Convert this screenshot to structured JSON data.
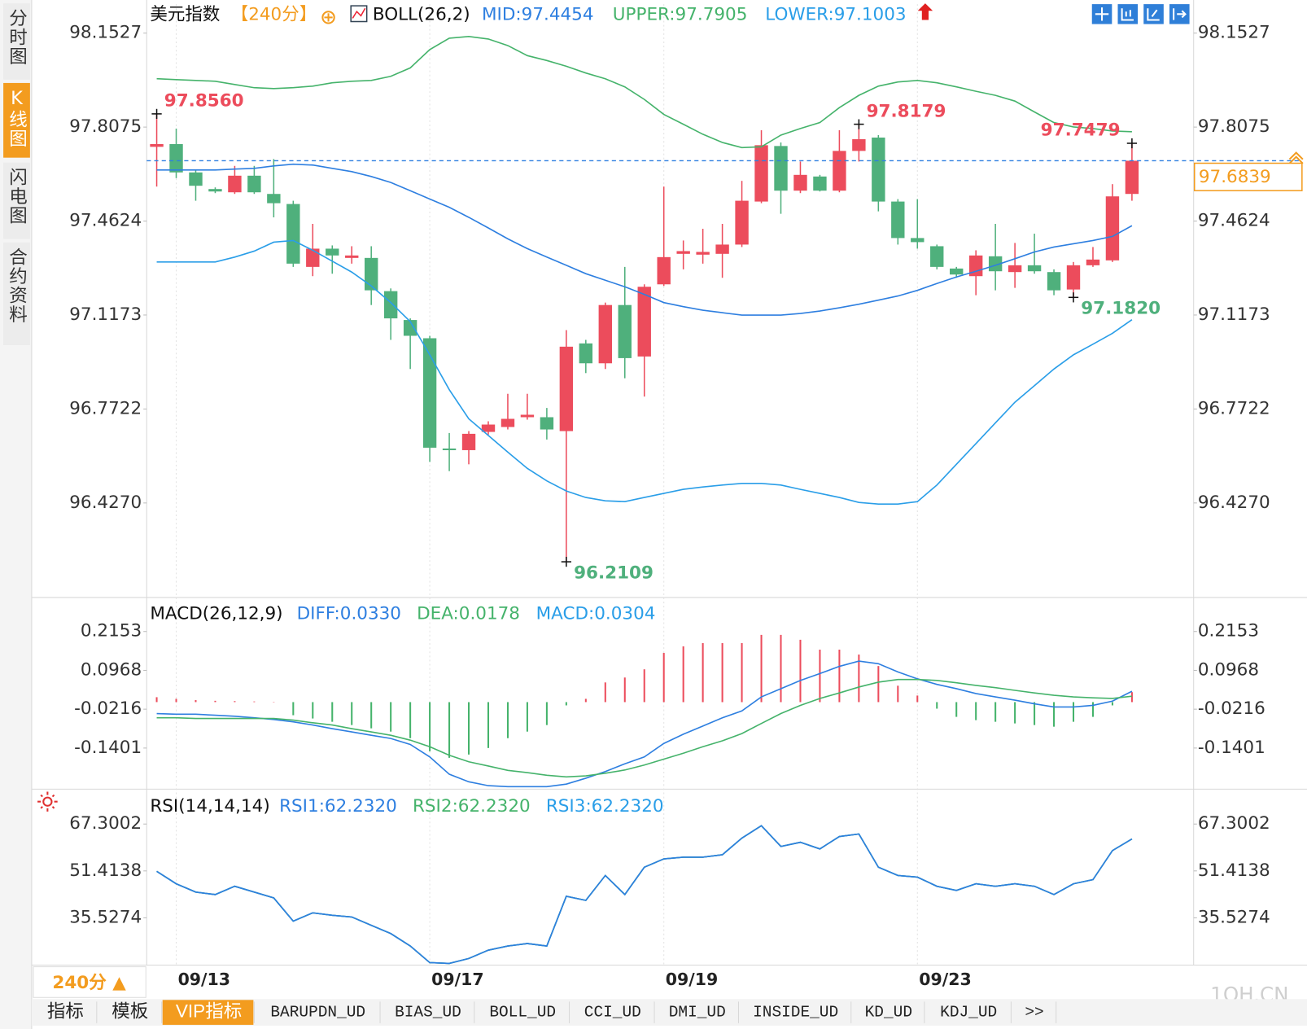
{
  "sidebar": {
    "tabs": [
      "分时图",
      "K线图",
      "闪电图",
      "合约资料"
    ],
    "active": 1
  },
  "toolbar": {
    "period": "240分 ▲",
    "tabs": [
      "指标",
      "模板",
      "VIP指标",
      "BARUPDN_UD",
      "BIAS_UD",
      "BOLL_UD",
      "CCI_UD",
      "DMI_UD",
      "INSIDE_UD",
      "KD_UD",
      "KDJ_UD",
      ">>"
    ],
    "active": 2
  },
  "watermark": "1QH.CN",
  "chart_data": [
    {
      "type": "candlestick",
      "title": "美元指数",
      "period": "【240分】",
      "indicator": "BOLL(26,2)",
      "up_color": "#ec4c5c",
      "down_color": "#4fb07c",
      "categories": [
        null,
        "09/13",
        null,
        null,
        null,
        null,
        null,
        null,
        null,
        null,
        null,
        null,
        null,
        null,
        "09/17",
        null,
        null,
        null,
        null,
        null,
        null,
        null,
        null,
        null,
        null,
        null,
        "09/19",
        null,
        null,
        null,
        null,
        null,
        null,
        null,
        null,
        null,
        null,
        null,
        null,
        "09/23",
        null,
        null,
        null,
        null,
        null,
        null,
        null,
        null,
        null,
        null,
        null
      ],
      "open": [
        97.735,
        97.745,
        97.641,
        97.58,
        97.568,
        97.629,
        97.562,
        97.525,
        97.294,
        97.361,
        97.327,
        97.327,
        97.205,
        97.099,
        97.032,
        96.627,
        96.621,
        96.688,
        96.706,
        96.742,
        96.742,
        96.691,
        97.013,
        96.94,
        97.154,
        96.965,
        97.23,
        97.342,
        97.339,
        97.342,
        97.376,
        97.534,
        97.738,
        97.574,
        97.626,
        97.574,
        97.72,
        97.769,
        97.534,
        97.4,
        97.37,
        97.288,
        97.26,
        97.333,
        97.275,
        97.3,
        97.275,
        97.211,
        97.3,
        97.318,
        97.562
      ],
      "high": [
        97.856,
        97.802,
        97.65,
        97.586,
        97.665,
        97.665,
        97.69,
        97.537,
        97.452,
        97.373,
        97.37,
        97.37,
        97.215,
        97.105,
        97.041,
        96.684,
        96.691,
        96.727,
        96.828,
        96.828,
        96.776,
        97.062,
        97.026,
        97.163,
        97.294,
        97.23,
        97.589,
        97.391,
        97.434,
        97.452,
        97.61,
        97.796,
        97.751,
        97.681,
        97.632,
        97.796,
        97.818,
        97.778,
        97.543,
        97.543,
        97.376,
        97.294,
        97.355,
        97.452,
        97.382,
        97.416,
        97.285,
        97.312,
        97.367,
        97.598,
        97.748
      ],
      "low": [
        97.589,
        97.62,
        97.537,
        97.565,
        97.562,
        97.562,
        97.476,
        97.294,
        97.26,
        97.269,
        97.306,
        97.154,
        97.026,
        96.919,
        96.578,
        96.544,
        96.569,
        96.678,
        96.697,
        96.733,
        96.66,
        96.211,
        96.904,
        96.919,
        96.885,
        96.818,
        97.224,
        97.285,
        97.306,
        97.254,
        97.367,
        97.528,
        97.489,
        97.565,
        97.571,
        97.568,
        97.681,
        97.498,
        97.376,
        97.361,
        97.285,
        97.254,
        97.19,
        97.208,
        97.217,
        97.269,
        97.19,
        97.182,
        97.294,
        97.312,
        97.537
      ],
      "close": [
        97.745,
        97.641,
        97.592,
        97.571,
        97.629,
        97.568,
        97.528,
        97.306,
        97.361,
        97.336,
        97.336,
        97.208,
        97.105,
        97.041,
        96.63,
        96.621,
        96.681,
        96.715,
        96.736,
        96.751,
        96.697,
        97.001,
        96.94,
        97.154,
        96.959,
        97.221,
        97.33,
        97.352,
        97.349,
        97.376,
        97.537,
        97.741,
        97.574,
        97.632,
        97.574,
        97.72,
        97.763,
        97.534,
        97.4,
        97.385,
        97.294,
        97.266,
        97.336,
        97.278,
        97.3,
        97.278,
        97.208,
        97.3,
        97.321,
        97.553,
        97.6839
      ],
      "series": [
        {
          "name": "MID:97.4454",
          "color": "#2e7fe0",
          "values": [
            97.65,
            97.65,
            97.65,
            97.65,
            97.653,
            97.656,
            97.665,
            97.671,
            97.668,
            97.656,
            97.644,
            97.626,
            97.604,
            97.574,
            97.543,
            97.513,
            97.476,
            97.437,
            97.397,
            97.361,
            97.33,
            97.3,
            97.269,
            97.245,
            97.221,
            97.193,
            97.163,
            97.148,
            97.135,
            97.126,
            97.117,
            97.117,
            97.117,
            97.123,
            97.132,
            97.144,
            97.157,
            97.172,
            97.187,
            97.208,
            97.233,
            97.257,
            97.278,
            97.3,
            97.324,
            97.349,
            97.367,
            97.379,
            97.391,
            97.406,
            97.4454
          ]
        },
        {
          "name": "UPPER:97.7905",
          "color": "#45b36b",
          "values": [
            97.985,
            97.982,
            97.979,
            97.976,
            97.964,
            97.952,
            97.949,
            97.952,
            97.958,
            97.97,
            97.976,
            97.979,
            97.994,
            98.025,
            98.092,
            98.134,
            98.14,
            98.131,
            98.107,
            98.07,
            98.052,
            98.031,
            98.006,
            97.985,
            97.955,
            97.909,
            97.854,
            97.818,
            97.781,
            97.751,
            97.732,
            97.735,
            97.778,
            97.802,
            97.824,
            97.879,
            97.924,
            97.958,
            97.973,
            97.979,
            97.97,
            97.955,
            97.939,
            97.924,
            97.903,
            97.863,
            97.824,
            97.808,
            97.802,
            97.793,
            97.7905
          ]
        },
        {
          "name": "LOWER:97.1003",
          "color": "#2a9ee8",
          "values": [
            97.312,
            97.312,
            97.312,
            97.312,
            97.33,
            97.352,
            97.385,
            97.391,
            97.355,
            97.315,
            97.275,
            97.224,
            97.163,
            97.093,
            96.971,
            96.843,
            96.736,
            96.675,
            96.614,
            96.554,
            96.508,
            96.471,
            96.447,
            96.435,
            96.432,
            96.447,
            96.462,
            96.477,
            96.486,
            96.493,
            96.499,
            96.499,
            96.493,
            96.477,
            96.462,
            96.447,
            96.429,
            96.423,
            96.423,
            96.432,
            96.493,
            96.569,
            96.645,
            96.721,
            96.797,
            96.858,
            96.919,
            96.971,
            97.01,
            97.05,
            97.1003
          ]
        }
      ],
      "annotations": [
        {
          "label": "97.8560",
          "index": 0,
          "at": "high"
        },
        {
          "label": "96.2109",
          "index": 21,
          "at": "low"
        },
        {
          "label": "97.8179",
          "index": 36,
          "at": "high"
        },
        {
          "label": "97.1820",
          "index": 47,
          "at": "low"
        },
        {
          "label": "97.7479",
          "index": 50,
          "at": "high"
        }
      ],
      "last": {
        "value": 97.6839,
        "label": "97.6839"
      },
      "ylim": [
        96.086,
        98.259
      ],
      "yticks": [
        98.1527,
        97.8075,
        97.4624,
        97.1173,
        96.7722,
        {
          "value": 96.427,
          "label": "96.4270"
        }
      ]
    },
    {
      "type": "macd",
      "title": "MACD(26,12,9)",
      "up_color": "#ec4c5c",
      "down_color": "#45b36b",
      "series": [
        {
          "name": "DIFF:0.0330",
          "kind": "line",
          "color": "#2e7fe0",
          "values": [
            -0.035,
            -0.037,
            -0.037,
            -0.04,
            -0.043,
            -0.048,
            -0.053,
            -0.06,
            -0.07,
            -0.081,
            -0.091,
            -0.101,
            -0.111,
            -0.129,
            -0.167,
            -0.22,
            -0.243,
            -0.255,
            -0.258,
            -0.258,
            -0.258,
            -0.25,
            -0.232,
            -0.212,
            -0.188,
            -0.167,
            -0.126,
            -0.098,
            -0.073,
            -0.048,
            -0.027,
            0.016,
            0.041,
            0.066,
            0.087,
            0.109,
            0.125,
            0.117,
            0.092,
            0.071,
            0.054,
            0.041,
            0.026,
            0.016,
            0.006,
            -0.005,
            -0.015,
            -0.015,
            -0.01,
            0.003,
            0.033
          ]
        },
        {
          "name": "DEA:0.0178",
          "kind": "line",
          "color": "#45b36b",
          "values": [
            -0.048,
            -0.048,
            -0.05,
            -0.05,
            -0.05,
            -0.05,
            -0.05,
            -0.055,
            -0.063,
            -0.07,
            -0.081,
            -0.091,
            -0.101,
            -0.116,
            -0.136,
            -0.162,
            -0.182,
            -0.195,
            -0.208,
            -0.215,
            -0.223,
            -0.228,
            -0.225,
            -0.217,
            -0.207,
            -0.192,
            -0.174,
            -0.156,
            -0.136,
            -0.118,
            -0.096,
            -0.065,
            -0.035,
            -0.01,
            0.011,
            0.028,
            0.046,
            0.061,
            0.069,
            0.069,
            0.066,
            0.059,
            0.051,
            0.044,
            0.036,
            0.028,
            0.021,
            0.016,
            0.013,
            0.011,
            0.0178
          ]
        },
        {
          "name": "MACD:0.0304",
          "kind": "bar",
          "color": "#2a9ee8",
          "values": [
            0.015,
            0.01,
            0.006,
            0.004,
            0.003,
            0.002,
            0.001,
            -0.04,
            -0.05,
            -0.06,
            -0.07,
            -0.08,
            -0.09,
            -0.11,
            -0.15,
            -0.17,
            -0.16,
            -0.14,
            -0.11,
            -0.09,
            -0.07,
            -0.01,
            0.01,
            0.06,
            0.075,
            0.1,
            0.15,
            0.17,
            0.18,
            0.18,
            0.18,
            0.205,
            0.205,
            0.19,
            0.16,
            0.16,
            0.145,
            0.11,
            0.05,
            0.02,
            -0.02,
            -0.045,
            -0.055,
            -0.06,
            -0.065,
            -0.07,
            -0.075,
            -0.06,
            -0.045,
            -0.01,
            0.0304
          ]
        }
      ],
      "ylim": [
        -0.263,
        0.314
      ],
      "yticks": [
        0.2153,
        0.0968,
        -0.0216,
        -0.1401
      ]
    },
    {
      "type": "line",
      "title": "RSI(14,14,14)",
      "series": [
        {
          "name": "RSI1:62.2320",
          "color": "#2e7fe0",
          "values": [
            51.27,
            47.05,
            44.24,
            43.4,
            46.21,
            44.24,
            42.27,
            34.4,
            37.21,
            36.37,
            35.81,
            33.0,
            30.19,
            25.97,
            20.34,
            20.06,
            21.75,
            24.56,
            25.97,
            26.81,
            25.97,
            42.83,
            41.43,
            49.87,
            43.4,
            52.68,
            55.49,
            56.05,
            56.05,
            56.9,
            62.52,
            66.74,
            59.71,
            61.11,
            58.86,
            63.08,
            63.93,
            52.68,
            49.87,
            49.3,
            46.21,
            44.8,
            47.05,
            46.21,
            47.05,
            46.21,
            43.4,
            47.05,
            48.46,
            58.3,
            62.232
          ]
        },
        {
          "name": "RSI2:62.2320",
          "color": "#45b36b",
          "values": [
            51.27,
            47.05,
            44.24,
            43.4,
            46.21,
            44.24,
            42.27,
            34.4,
            37.21,
            36.37,
            35.81,
            33.0,
            30.19,
            25.97,
            20.34,
            20.06,
            21.75,
            24.56,
            25.97,
            26.81,
            25.97,
            42.83,
            41.43,
            49.87,
            43.4,
            52.68,
            55.49,
            56.05,
            56.05,
            56.9,
            62.52,
            66.74,
            59.71,
            61.11,
            58.86,
            63.08,
            63.93,
            52.68,
            49.87,
            49.3,
            46.21,
            44.8,
            47.05,
            46.21,
            47.05,
            46.21,
            43.4,
            47.05,
            48.46,
            58.3,
            62.232
          ]
        },
        {
          "name": "RSI3:62.2320",
          "color": "#2a9ee8",
          "values": [
            51.27,
            47.05,
            44.24,
            43.4,
            46.21,
            44.24,
            42.27,
            34.4,
            37.21,
            36.37,
            35.81,
            33.0,
            30.19,
            25.97,
            20.34,
            20.06,
            21.75,
            24.56,
            25.97,
            26.81,
            25.97,
            42.83,
            41.43,
            49.87,
            43.4,
            52.68,
            55.49,
            56.05,
            56.05,
            56.9,
            62.52,
            66.74,
            59.71,
            61.11,
            58.86,
            63.08,
            63.93,
            52.68,
            49.87,
            49.3,
            46.21,
            44.8,
            47.05,
            46.21,
            47.05,
            46.21,
            43.4,
            47.05,
            48.46,
            58.3,
            62.232
          ]
        }
      ],
      "ylim": [
        19.78,
        78.83
      ],
      "yticks": [
        67.3002,
        51.4138,
        35.5274
      ]
    }
  ]
}
